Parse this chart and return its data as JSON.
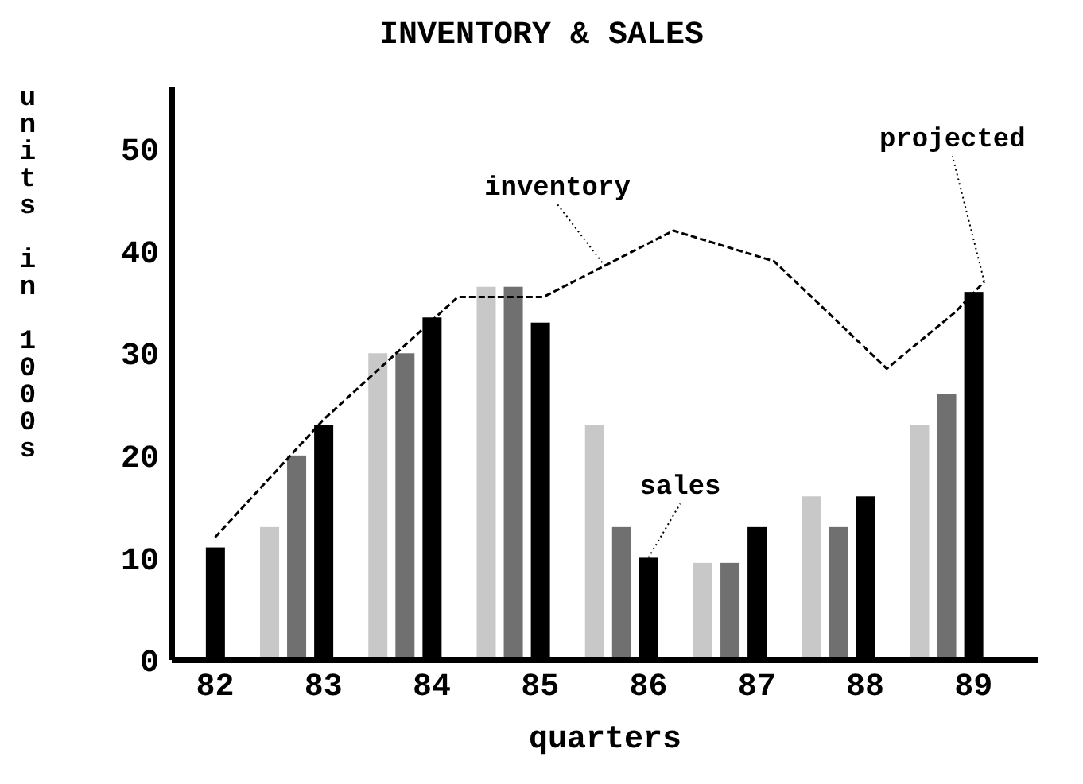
{
  "chart_data": {
    "type": "bar",
    "title": "INVENTORY & SALES",
    "xlabel": "quarters",
    "ylabel": "units in 1000s",
    "xlim": [
      81.6,
      89.6
    ],
    "xticks": [
      82,
      83,
      84,
      85,
      86,
      87,
      88,
      89
    ],
    "ylim": [
      0,
      56
    ],
    "yticks": [
      0,
      10,
      20,
      30,
      40,
      50
    ],
    "grid": false,
    "legend": false,
    "series": [
      {
        "x": [
          82,
          82.5,
          82.75,
          83,
          83.5,
          83.75,
          84,
          84.5,
          84.75,
          85,
          85.5,
          85.75,
          86,
          86.5,
          86.75,
          87,
          87.5,
          87.75,
          88,
          88.5,
          88.75,
          89
        ],
        "values": [
          11,
          13,
          20,
          23,
          30,
          30,
          33.5,
          36.5,
          36.5,
          33,
          23,
          13,
          10,
          9.5,
          9.5,
          13,
          16,
          13,
          16,
          23,
          26,
          36
        ],
        "colors": [
          "#000000",
          "#c8c8c8",
          "#707070",
          "#000000",
          "#c8c8c8",
          "#707070",
          "#000000",
          "#c8c8c8",
          "#707070",
          "#000000",
          "#c8c8c8",
          "#707070",
          "#000000",
          "#c8c8c8",
          "#707070",
          "#000000",
          "#c8c8c8",
          "#707070",
          "#000000",
          "#c8c8c8",
          "#707070",
          "#000000"
        ]
      },
      {
        "type": "line",
        "x": [
          82,
          83,
          84.24,
          85.03,
          86.23,
          87.16,
          88.2,
          88.83,
          89.1
        ],
        "values": [
          12,
          23.5,
          35.5,
          35.5,
          42,
          39,
          28.5,
          34,
          37
        ],
        "color": "#000000",
        "line_style": "dashed",
        "marker": "none"
      }
    ],
    "annotations": [
      {
        "text": "inventory",
        "x": 85.6,
        "y": 38.5
      },
      {
        "text": "sales",
        "x": 86,
        "y": 10
      },
      {
        "text": "projected",
        "x": 89.1,
        "y": 37
      }
    ]
  }
}
